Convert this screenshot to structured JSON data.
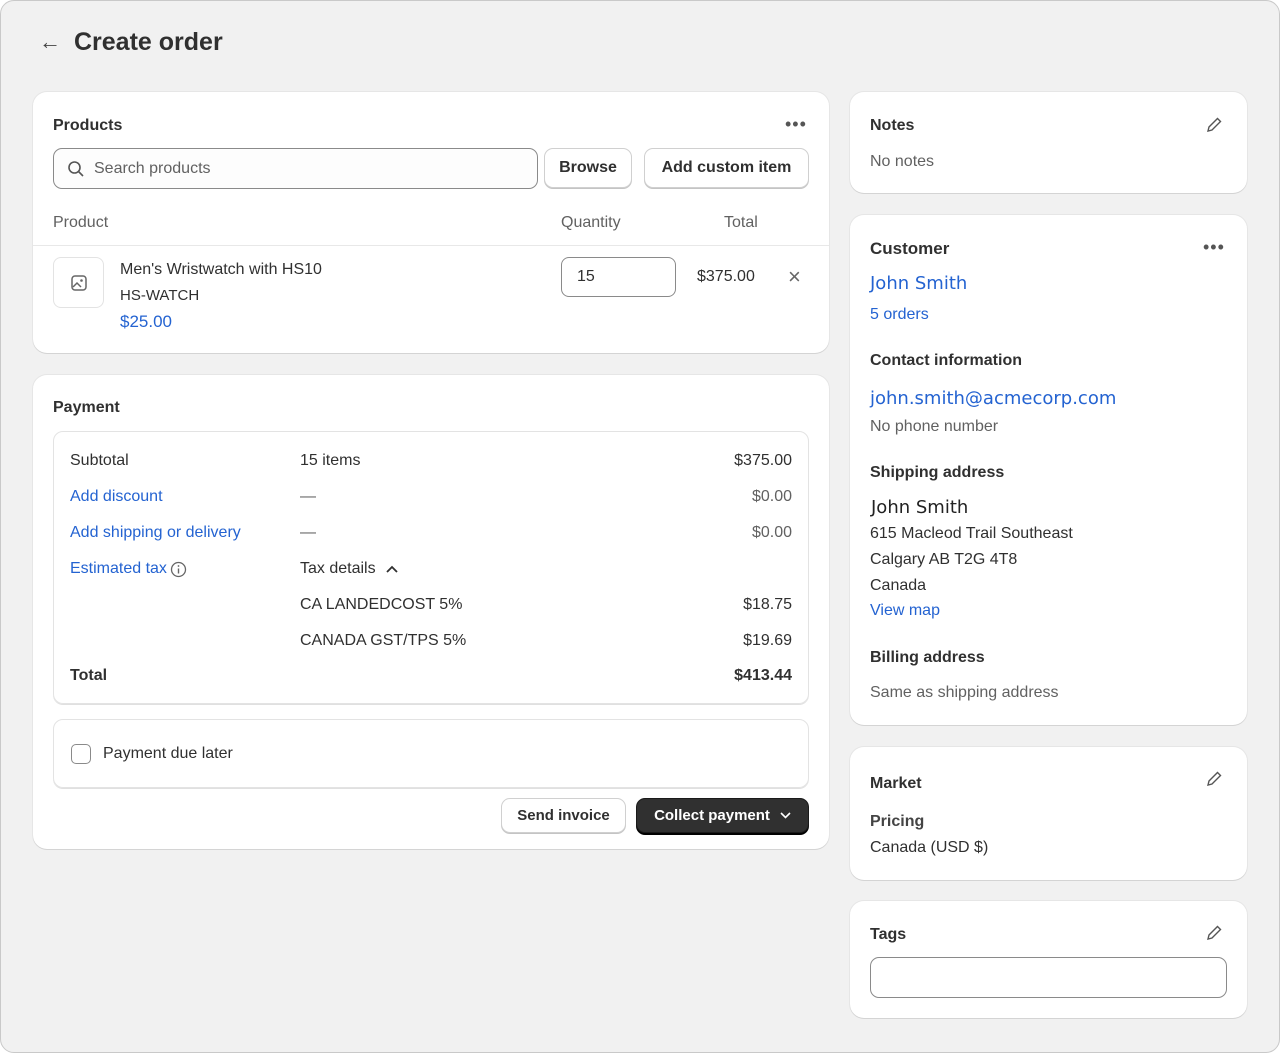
{
  "header": {
    "title": "Create order",
    "back_icon": "arrow-left-icon"
  },
  "colors": {
    "link": "#2463d1",
    "primary_button": "#303030",
    "background": "#f1f1f1"
  },
  "products": {
    "title": "Products",
    "search_placeholder": "Search products",
    "browse_label": "Browse",
    "add_custom_label": "Add custom item",
    "columns": [
      "Product",
      "Quantity",
      "Total"
    ],
    "items": [
      {
        "name": "Men's Wristwatch with HS10",
        "sku": "HS-WATCH",
        "price": "$25.00",
        "quantity": "15",
        "total": "$375.00"
      }
    ]
  },
  "payment": {
    "title": "Payment",
    "subtotal_label": "Subtotal",
    "subtotal_items": "15 items",
    "subtotal_value": "$375.00",
    "discount_label": "Add discount",
    "discount_dash": "—",
    "discount_value": "$0.00",
    "shipping_label": "Add shipping or delivery",
    "shipping_dash": "—",
    "shipping_value": "$0.00",
    "tax_label": "Estimated tax",
    "tax_details_label": "Tax details",
    "taxes": [
      {
        "name": "CA LANDEDCOST 5%",
        "value": "$18.75"
      },
      {
        "name": "CANADA GST/TPS 5%",
        "value": "$19.69"
      }
    ],
    "total_label": "Total",
    "total_value": "$413.44",
    "payment_due_later_label": "Payment due later",
    "payment_due_later_checked": false,
    "send_invoice_label": "Send invoice",
    "collect_payment_label": "Collect payment"
  },
  "notes": {
    "title": "Notes",
    "text": "No notes"
  },
  "customer": {
    "title": "Customer",
    "name": "John Smith",
    "orders": "5 orders",
    "contact_title": "Contact information",
    "email": "john.smith@acmecorp.com",
    "phone": "No phone number",
    "shipping_title": "Shipping address",
    "ship_name": "John Smith",
    "ship_line1": "615 Macleod Trail Southeast",
    "ship_line2": "Calgary AB T2G 4T8",
    "ship_country": "Canada",
    "view_map": "View map",
    "billing_title": "Billing address",
    "billing_text": "Same as shipping address"
  },
  "market": {
    "title": "Market",
    "pricing_label": "Pricing",
    "pricing_value": "Canada (USD $)"
  },
  "tags": {
    "title": "Tags",
    "value": ""
  }
}
